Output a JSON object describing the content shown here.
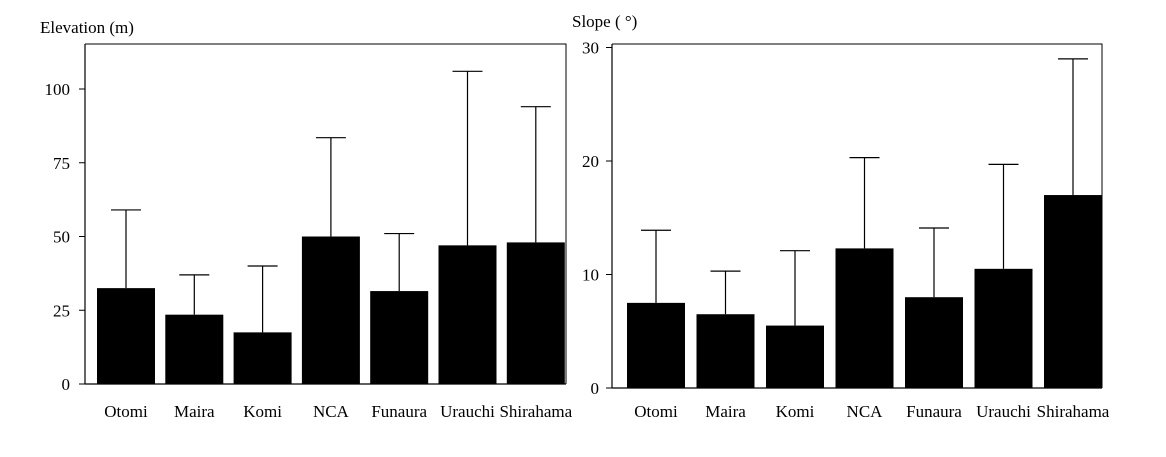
{
  "chart_data": [
    {
      "type": "bar",
      "ylabel": "Elevation (m)",
      "categories": [
        "Otomi",
        "Maira",
        "Komi",
        "NCA",
        "Funaura",
        "Urauchi",
        "Shirahama"
      ],
      "values": [
        32.5,
        23.5,
        17.5,
        50,
        31.5,
        47,
        48
      ],
      "error_upper": [
        59,
        37,
        40,
        83.5,
        51,
        106,
        94
      ],
      "yticks": [
        "0",
        "25",
        "50",
        "75",
        "100"
      ],
      "ylim": [
        0,
        115
      ],
      "bar_color": "#000000"
    },
    {
      "type": "bar",
      "ylabel": "Slope ( °)",
      "categories": [
        "Otomi",
        "Maira",
        "Komi",
        "NCA",
        "Funaura",
        "Urauchi",
        "Shirahama"
      ],
      "values": [
        7.5,
        6.5,
        5.5,
        12.3,
        8,
        10.5,
        17
      ],
      "error_upper": [
        13.9,
        10.3,
        12.1,
        20.3,
        14.1,
        19.7,
        29
      ],
      "yticks": [
        "0",
        "10",
        "20",
        "30"
      ],
      "ylim": [
        0,
        30
      ],
      "bar_color": "#000000"
    }
  ]
}
